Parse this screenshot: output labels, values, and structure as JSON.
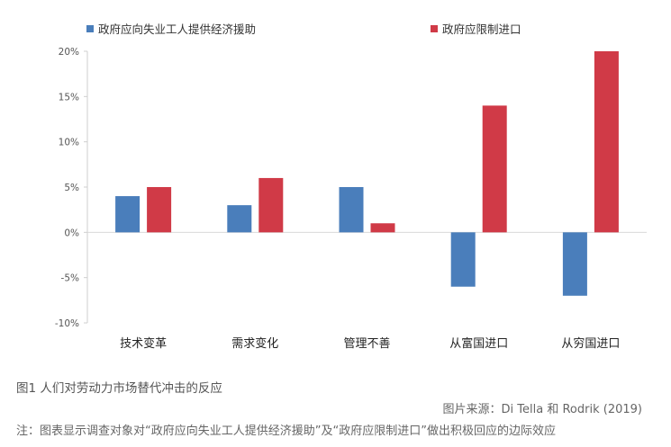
{
  "chart_data": {
    "type": "bar",
    "categories": [
      "技术变革",
      "需求变化",
      "管理不善",
      "从富国进口",
      "从穷国进口"
    ],
    "series": [
      {
        "name": "政府应向失业工人提供经济援助",
        "color": "#4a7ebb",
        "values": [
          4,
          3,
          5,
          -6,
          -7
        ]
      },
      {
        "name": "政府应限制进口",
        "color": "#d03a47",
        "values": [
          5,
          6,
          1,
          14,
          20
        ]
      }
    ],
    "ylim": [
      -10,
      20
    ],
    "yticks": [
      -10,
      -5,
      0,
      5,
      10,
      15,
      20
    ],
    "ytick_labels": [
      "-10%",
      "-5%",
      "0%",
      "5%",
      "10%",
      "15%",
      "20%"
    ],
    "grid": false,
    "legend_position": "top"
  },
  "caption": {
    "figure": "图1  人们对劳动力市场替代冲击的反应",
    "source": "图片来源：Di Tella 和 Rodrik (2019)",
    "note": "注：图表显示调查对象对“政府应向失业工人提供经济援助”及“政府应限制进口”做出积极回应的边际效应"
  }
}
